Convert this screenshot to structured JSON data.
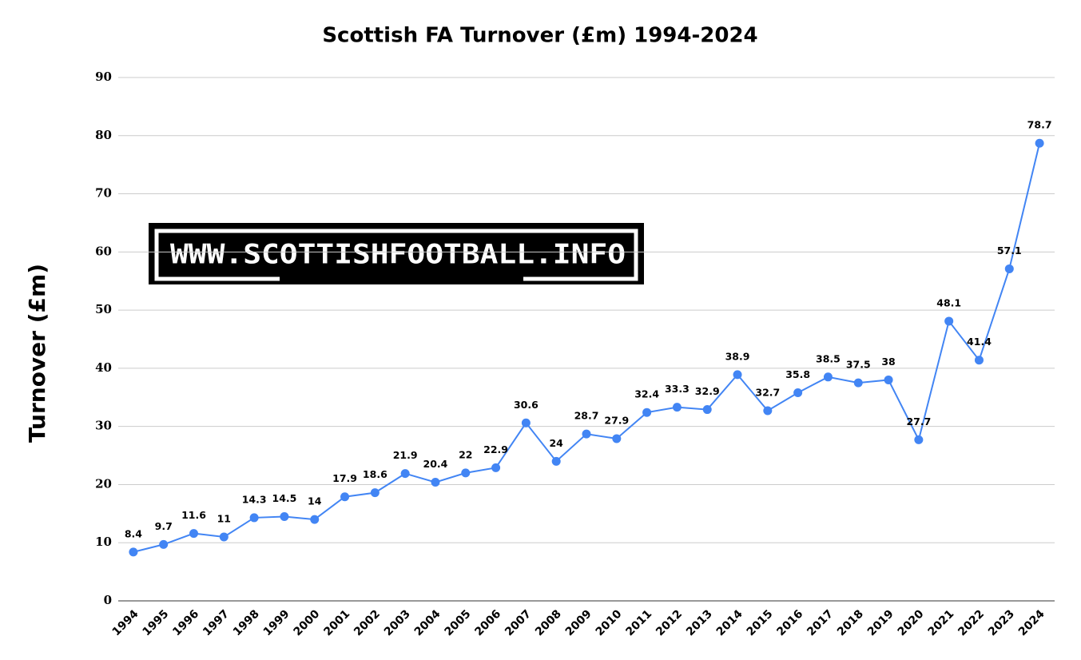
{
  "chart_data": {
    "type": "line",
    "title": "Scottish FA Turnover (£m) 1994-2024",
    "y_label": "Turnover (£m)",
    "watermark": "WWW.SCOTTISHFOOTBALL.INFO",
    "categories": [
      "1994",
      "1995",
      "1996",
      "1997",
      "1998",
      "1999",
      "2000",
      "2001",
      "2002",
      "2003",
      "2004",
      "2005",
      "2006",
      "2007",
      "2008",
      "2009",
      "2010",
      "2011",
      "2012",
      "2013",
      "2014",
      "2015",
      "2016",
      "2017",
      "2018",
      "2019",
      "2020",
      "2021",
      "2022",
      "2023",
      "2024"
    ],
    "values": [
      8.4,
      9.7,
      11.6,
      11,
      14.3,
      14.5,
      14,
      17.9,
      18.6,
      21.9,
      20.4,
      22,
      22.9,
      30.6,
      24,
      28.7,
      27.9,
      32.4,
      33.3,
      32.9,
      38.9,
      32.7,
      35.8,
      38.5,
      37.5,
      38,
      27.7,
      48.1,
      41.4,
      57.1,
      78.7
    ],
    "color": "#4285f4",
    "ylim": [
      0,
      90
    ],
    "yticks": [
      0,
      10,
      20,
      30,
      40,
      50,
      60,
      70,
      80,
      90
    ],
    "grid": true
  }
}
